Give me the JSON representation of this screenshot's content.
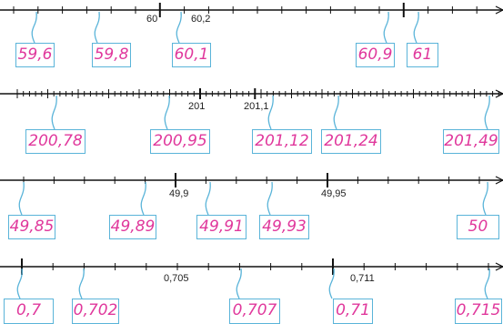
{
  "number_lines": [
    {
      "name": "line-1",
      "tick_annotations": [
        {
          "text": "60"
        },
        {
          "text": "60,2"
        }
      ],
      "labels": [
        "59,6",
        "59,8",
        "60,1",
        "60,9",
        "61"
      ]
    },
    {
      "name": "line-2",
      "tick_annotations": [
        {
          "text": "201"
        },
        {
          "text": "201,1"
        }
      ],
      "labels": [
        "200,78",
        "200,95",
        "201,12",
        "201,24",
        "201,49"
      ]
    },
    {
      "name": "line-3",
      "tick_annotations": [
        {
          "text": "49,9"
        },
        {
          "text": "49,95"
        }
      ],
      "labels": [
        "49,85",
        "49,89",
        "49,91",
        "49,93",
        "50"
      ]
    },
    {
      "name": "line-4",
      "tick_annotations": [
        {
          "text": "0,705"
        },
        {
          "text": "0,711"
        }
      ],
      "labels": [
        "0,7",
        "0,702",
        "0,707",
        "0,71",
        "0,715"
      ]
    }
  ],
  "colors": {
    "label_text": "#e0389c",
    "label_border": "#5ab4d9",
    "line": "#111111"
  }
}
